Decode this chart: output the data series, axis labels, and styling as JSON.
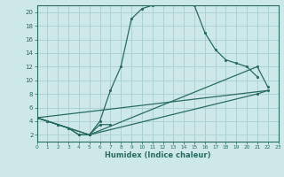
{
  "xlabel": "Humidex (Indice chaleur)",
  "bg_color": "#cde8e8",
  "grid_color": "#aad0d0",
  "line_color": "#2a6b60",
  "xlim": [
    0,
    23
  ],
  "ylim": [
    1,
    21
  ],
  "xticks": [
    0,
    1,
    2,
    3,
    4,
    5,
    6,
    7,
    8,
    9,
    10,
    11,
    12,
    13,
    14,
    15,
    16,
    17,
    18,
    19,
    20,
    21,
    22,
    23
  ],
  "yticks": [
    2,
    4,
    6,
    8,
    10,
    12,
    14,
    16,
    18,
    20
  ],
  "curve1_x": [
    0,
    1,
    2,
    3,
    4,
    5,
    6,
    7,
    8,
    9,
    10,
    11,
    12,
    13,
    14,
    15,
    16,
    17,
    18,
    19,
    20,
    21
  ],
  "curve1_y": [
    4.5,
    4.0,
    3.5,
    3.0,
    2.0,
    2.0,
    4.0,
    8.5,
    12.0,
    19.0,
    20.5,
    21.0,
    21.5,
    21.5,
    21.5,
    21.0,
    17.0,
    14.5,
    13.0,
    12.5,
    12.0,
    10.5
  ],
  "curve2_x": [
    0,
    1,
    2,
    3,
    4,
    5,
    6,
    7
  ],
  "curve2_y": [
    4.5,
    4.0,
    3.5,
    3.0,
    2.0,
    2.0,
    3.5,
    3.5
  ],
  "line1_x": [
    0,
    22
  ],
  "line1_y": [
    4.5,
    8.5
  ],
  "line2_x": [
    0,
    5,
    21,
    22
  ],
  "line2_y": [
    4.5,
    2.0,
    12.0,
    9.0
  ],
  "line3_x": [
    0,
    5,
    21,
    22
  ],
  "line3_y": [
    4.5,
    2.0,
    8.0,
    8.5
  ]
}
